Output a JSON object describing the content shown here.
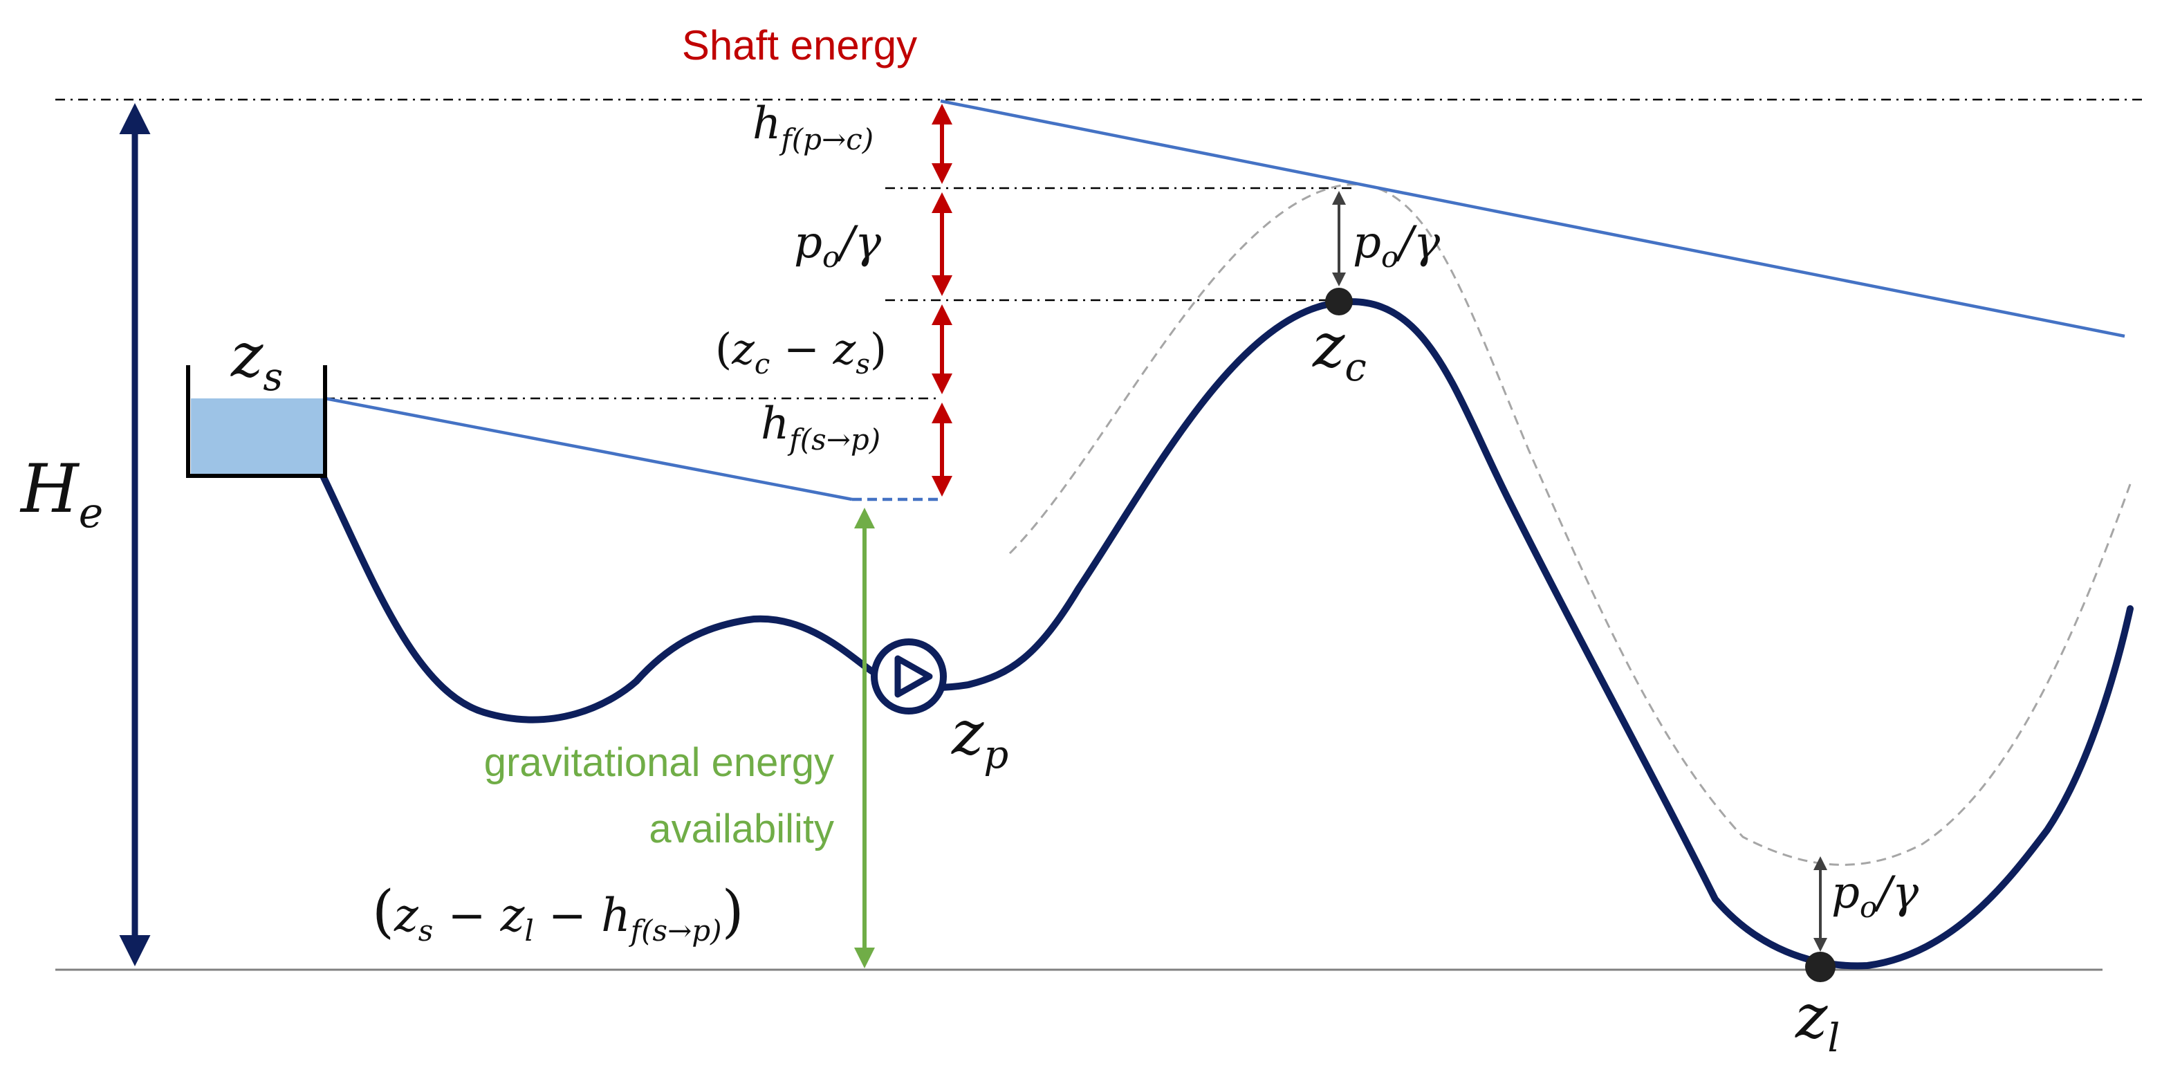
{
  "labels": {
    "shaft_energy": "Shaft energy",
    "gravitational_line1": "gravitational energy",
    "gravitational_line2": "availability"
  },
  "math": {
    "He": {
      "main": "H",
      "sub": "e"
    },
    "zs": {
      "main": "z",
      "sub": "s"
    },
    "zc": {
      "main": "z",
      "sub": "c"
    },
    "zp": {
      "main": "z",
      "sub": "p"
    },
    "zl": {
      "main": "z",
      "sub": "l"
    },
    "hf_pc": {
      "main": "h",
      "sub": "f(p→c)"
    },
    "hf_sp": {
      "main": "h",
      "sub": "f(s→p)"
    },
    "po_gamma": {
      "p": "p",
      "sub": "o",
      "rest": "/γ"
    },
    "zc_minus_zs": {
      "open": "(",
      "z1": "z",
      "s1": "c",
      "minus": " − ",
      "z2": "z",
      "s2": "s",
      "close": ")"
    },
    "grav_expr": {
      "open": "(",
      "z1": "z",
      "s1": "s",
      "m1": " − ",
      "z2": "z",
      "s2": "l",
      "m2": " − ",
      "h": "h",
      "s3": "f(s→p)",
      "close": ")"
    }
  },
  "colors": {
    "terrain": "#0d1f5c",
    "energy_line": "#4472c4",
    "shaft_arrows": "#c00000",
    "shaft_label": "#c00000",
    "gravitational": "#70ad47",
    "pressure_arrows": "#404040",
    "reservoir_water": "#9dc3e6",
    "dashed_pressure_line": "#a6a6a6",
    "reference_lines": "#000000"
  }
}
